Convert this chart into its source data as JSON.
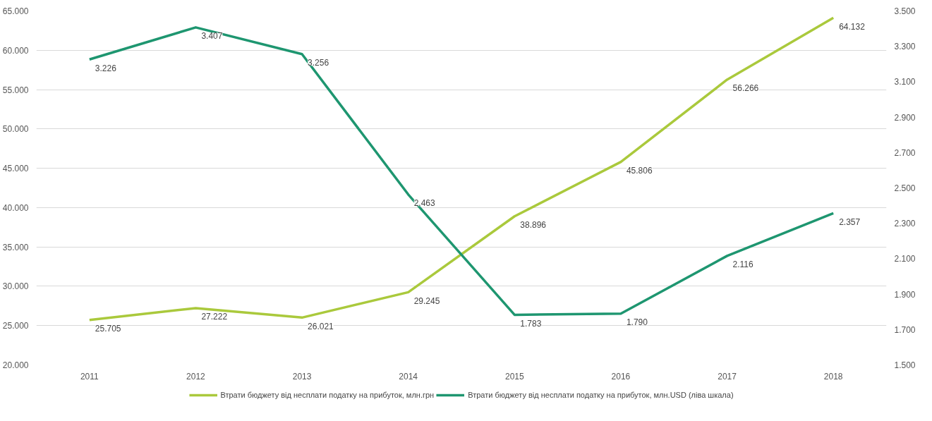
{
  "chart_data": {
    "type": "line",
    "categories": [
      "2011",
      "2012",
      "2013",
      "2014",
      "2015",
      "2016",
      "2017",
      "2018"
    ],
    "series": [
      {
        "name": "Втрати бюджету від несплати податку на прибуток, млн.грн",
        "color": "#aac93c",
        "values": [
          25705,
          27222,
          26021,
          29245,
          38896,
          45806,
          56266,
          64132
        ],
        "value_labels": [
          "25.705",
          "27.222",
          "26.021",
          "29.245",
          "38.896",
          "45.806",
          "56.266",
          "64.132"
        ]
      },
      {
        "name": "Втрати бюджету від несплати податку на прибуток, млн.USD (ліва шкала)",
        "color": "#1e9670",
        "axis": "y2",
        "values": [
          3226,
          3407,
          3256,
          2463,
          1783,
          1790,
          2116,
          2357
        ],
        "value_labels": [
          "3.226",
          "3.407",
          "3.256",
          "2.463",
          "1.783",
          "1.790",
          "2.116",
          "2.357"
        ]
      }
    ],
    "ylim": [
      20000,
      65000
    ],
    "yticks": [
      {
        "value": 20000,
        "label": "20.000"
      },
      {
        "value": 25000,
        "label": "25.000"
      },
      {
        "value": 30000,
        "label": "30.000"
      },
      {
        "value": 35000,
        "label": "35.000"
      },
      {
        "value": 40000,
        "label": "40.000"
      },
      {
        "value": 45000,
        "label": "45.000"
      },
      {
        "value": 50000,
        "label": "50.000"
      },
      {
        "value": 55000,
        "label": "55.000"
      },
      {
        "value": 60000,
        "label": "60.000"
      },
      {
        "value": 65000,
        "label": "65.000"
      }
    ],
    "y2lim": [
      1500,
      3500
    ],
    "y2ticks": [
      {
        "value": 1500,
        "label": "1.500"
      },
      {
        "value": 1700,
        "label": "1.700"
      },
      {
        "value": 1900,
        "label": "1.900"
      },
      {
        "value": 2100,
        "label": "2.100"
      },
      {
        "value": 2300,
        "label": "2.300"
      },
      {
        "value": 2500,
        "label": "2.500"
      },
      {
        "value": 2700,
        "label": "2.700"
      },
      {
        "value": 2900,
        "label": "2.900"
      },
      {
        "value": 3100,
        "label": "3.100"
      },
      {
        "value": 3300,
        "label": "3.300"
      },
      {
        "value": 3500,
        "label": "3.500"
      }
    ],
    "grid": "y",
    "legend": "bottom",
    "marker": "none",
    "line_style": "solid"
  }
}
